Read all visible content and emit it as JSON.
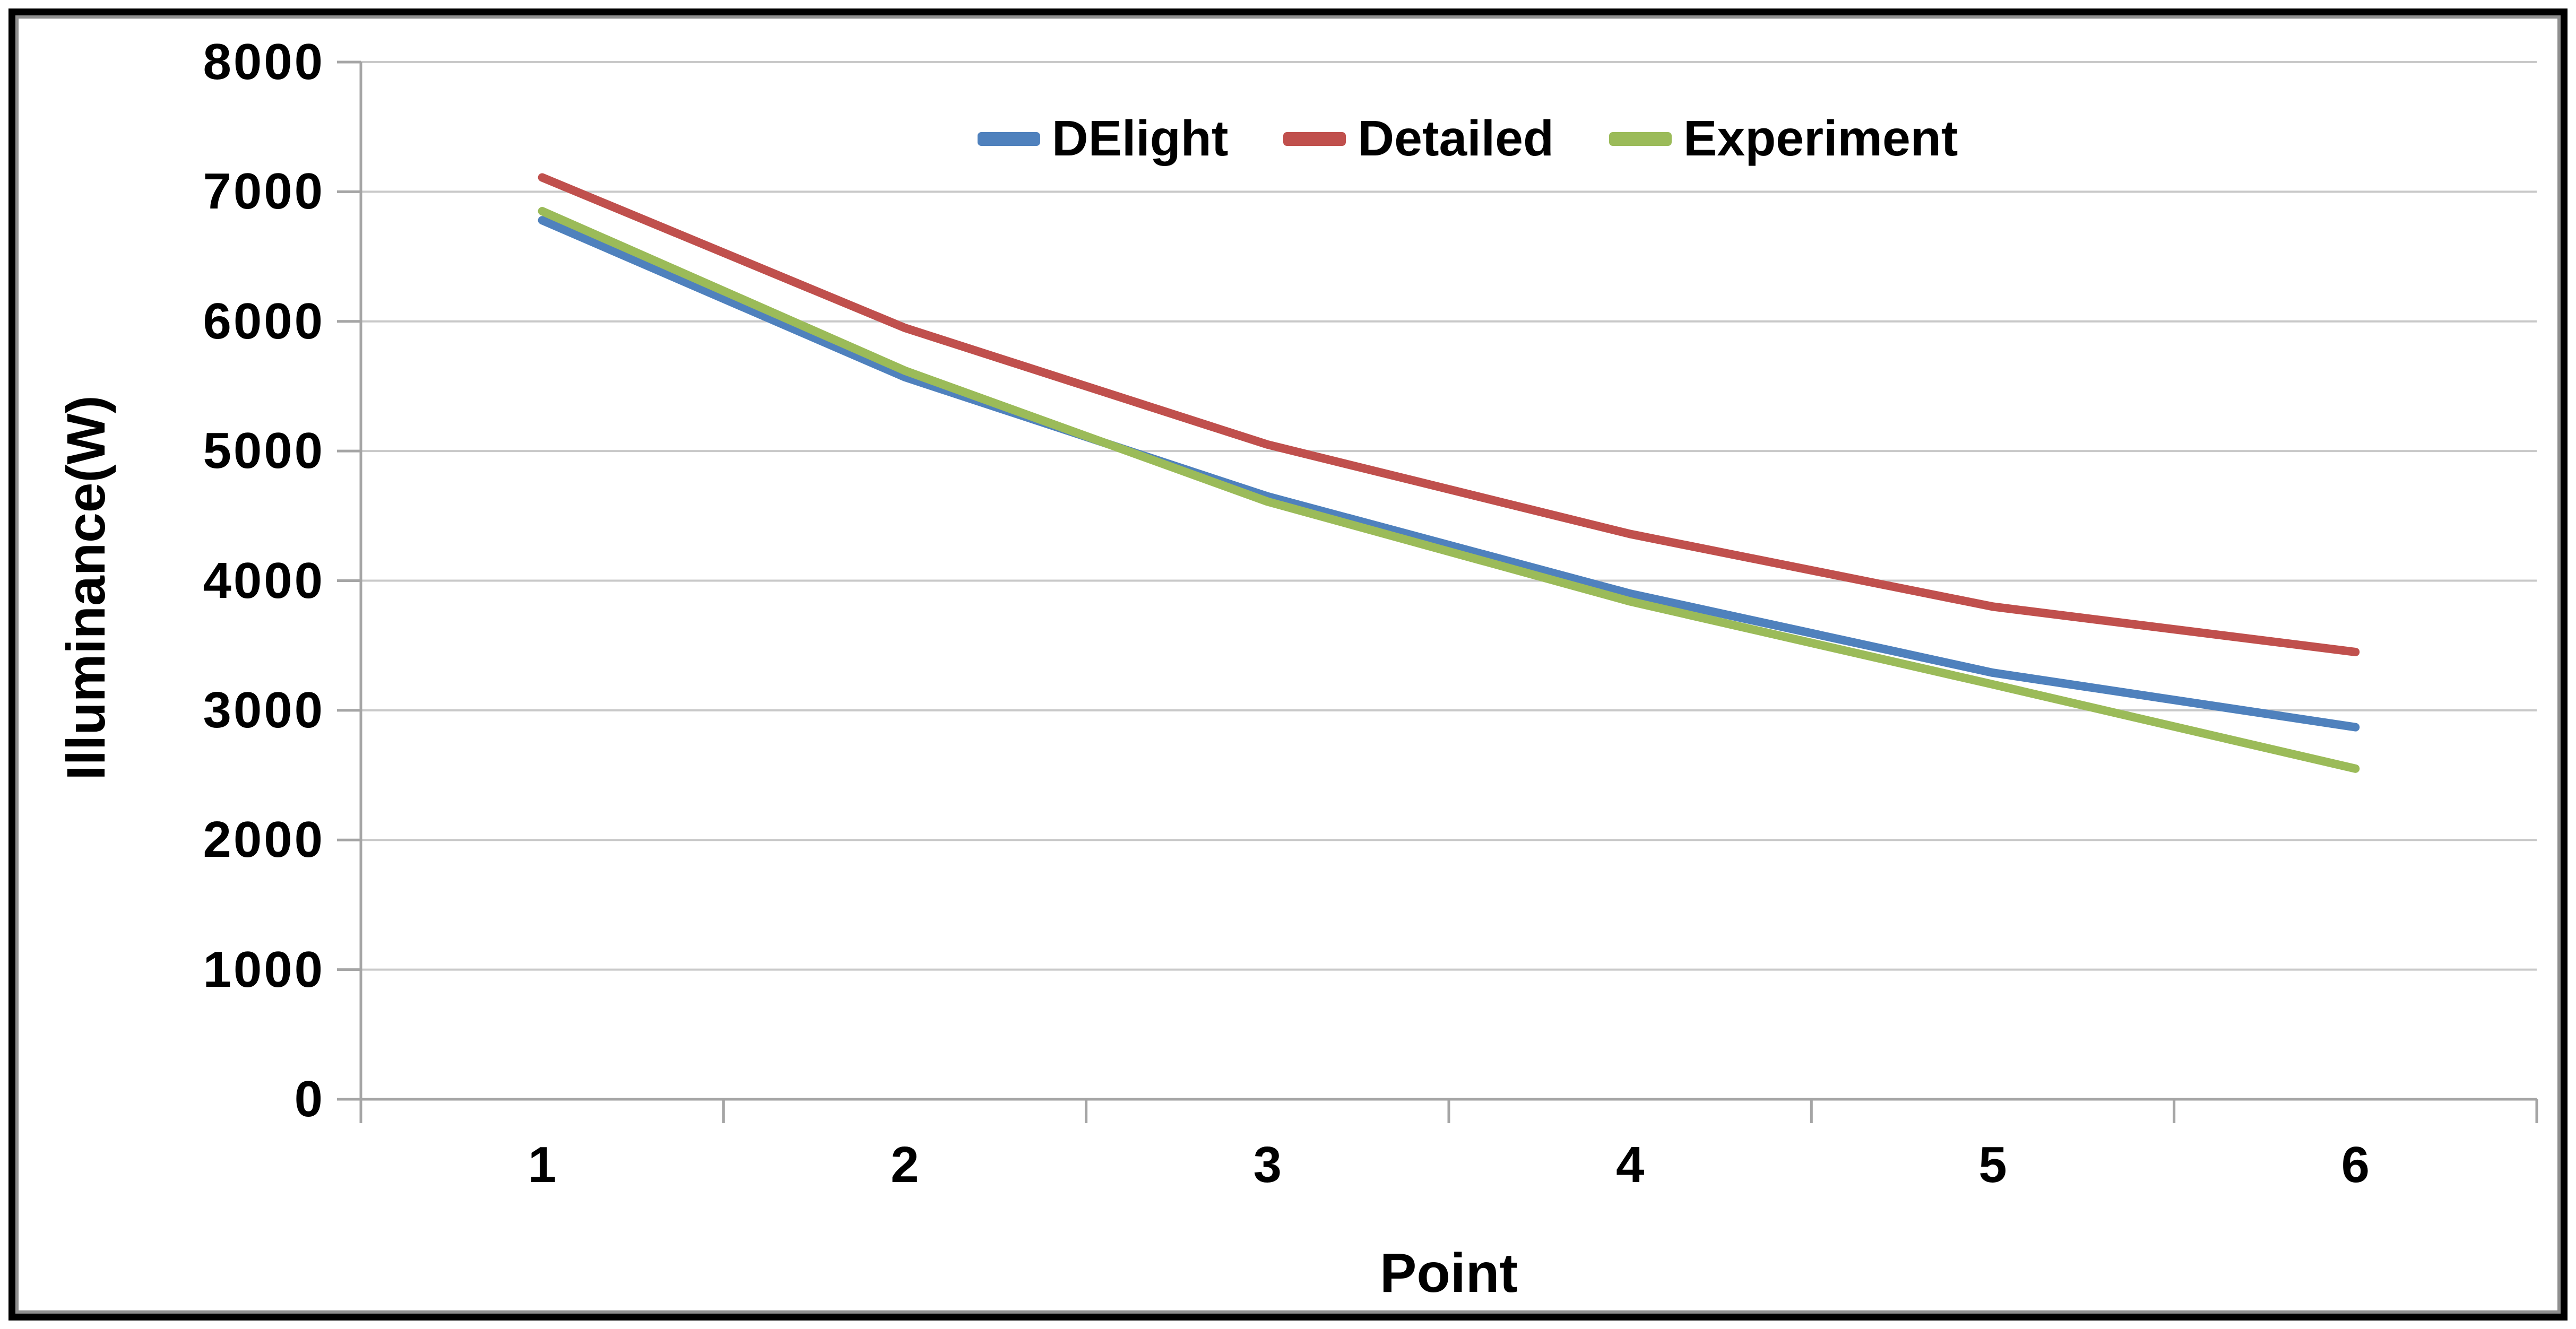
{
  "frame": {
    "border_color": "#000000",
    "inner_edge_color": "#8f8f8f"
  },
  "chart_data": {
    "type": "line",
    "title": "",
    "xlabel": "Point",
    "ylabel": "Illuminance(W)",
    "categories": [
      "1",
      "2",
      "3",
      "4",
      "5",
      "6"
    ],
    "series": [
      {
        "name": "DElight",
        "color": "#4F81BD",
        "values": [
          6780,
          5570,
          4650,
          3900,
          3290,
          2870
        ]
      },
      {
        "name": "Detailed",
        "color": "#C0504D",
        "values": [
          7110,
          5950,
          5050,
          4360,
          3800,
          3450
        ]
      },
      {
        "name": "Experiment",
        "color": "#9BBB59",
        "values": [
          6850,
          5620,
          4610,
          3840,
          3200,
          2550
        ]
      }
    ],
    "ylim": [
      0,
      8000
    ],
    "ytick_step": 1000,
    "ytick_labels": [
      "0",
      "1000",
      "2000",
      "3000",
      "4000",
      "5000",
      "6000",
      "7000",
      "8000"
    ],
    "grid": "horizontal",
    "gridline_color": "#C9C9C9",
    "axis_color": "#A5A5A5",
    "legend_position": "top-center",
    "text_color": "#000000",
    "background_color": "#FFFFFF"
  }
}
